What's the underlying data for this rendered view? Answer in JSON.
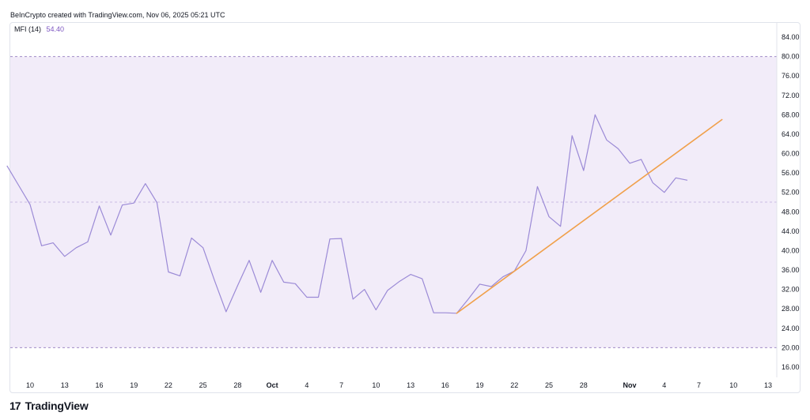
{
  "caption": "BeInCrypto created with TradingView.com, Nov 06, 2025 05:21 UTC",
  "indicator": {
    "name": "MFI (14)",
    "value": "54.40"
  },
  "brand": {
    "mark": "17",
    "name": "TradingView"
  },
  "colors": {
    "line": "#9b8ad6",
    "trend": "#f0a04b",
    "band_fill": "#f2ecf9",
    "band_border": "#a08cc8"
  },
  "chart_data": {
    "type": "line",
    "ylim": [
      12,
      88
    ],
    "y_ticks": [
      "84.00",
      "80.00",
      "76.00",
      "72.00",
      "68.00",
      "64.00",
      "60.00",
      "56.00",
      "52.00",
      "48.00",
      "44.00",
      "40.00",
      "36.00",
      "32.00",
      "28.00",
      "24.00",
      "20.00",
      "16.00"
    ],
    "y_tick_values": [
      84,
      80,
      76,
      72,
      68,
      64,
      60,
      56,
      52,
      48,
      44,
      40,
      36,
      32,
      28,
      24,
      20,
      16
    ],
    "x_tick_labels": [
      "10",
      "13",
      "16",
      "19",
      "22",
      "25",
      "28",
      "Oct",
      "4",
      "7",
      "10",
      "13",
      "16",
      "19",
      "22",
      "25",
      "28",
      "Nov",
      "4",
      "7",
      "10",
      "13"
    ],
    "x_tick_dates": [
      "2025-09-10",
      "2025-09-13",
      "2025-09-16",
      "2025-09-19",
      "2025-09-22",
      "2025-09-25",
      "2025-09-28",
      "2025-10-01",
      "2025-10-04",
      "2025-10-07",
      "2025-10-10",
      "2025-10-13",
      "2025-10-16",
      "2025-10-19",
      "2025-10-22",
      "2025-10-25",
      "2025-10-28",
      "2025-11-01",
      "2025-11-04",
      "2025-11-07",
      "2025-11-10",
      "2025-11-13"
    ],
    "band": {
      "upper": 80,
      "lower": 20,
      "middle": 50
    },
    "series": [
      {
        "values": [
          [
            "2025-09-08",
            57.5
          ],
          [
            "2025-09-09",
            53.5
          ],
          [
            "2025-09-10",
            49.5
          ],
          [
            "2025-09-11",
            41.0
          ],
          [
            "2025-09-12",
            41.6
          ],
          [
            "2025-09-13",
            38.8
          ],
          [
            "2025-09-14",
            40.6
          ],
          [
            "2025-09-15",
            41.8
          ],
          [
            "2025-09-16",
            49.2
          ],
          [
            "2025-09-17",
            43.2
          ],
          [
            "2025-09-18",
            49.4
          ],
          [
            "2025-09-19",
            49.8
          ],
          [
            "2025-09-20",
            53.8
          ],
          [
            "2025-09-21",
            49.9
          ],
          [
            "2025-09-22",
            35.6
          ],
          [
            "2025-09-23",
            34.8
          ],
          [
            "2025-09-24",
            42.6
          ],
          [
            "2025-09-25",
            40.6
          ],
          [
            "2025-09-26",
            33.8
          ],
          [
            "2025-09-27",
            27.4
          ],
          [
            "2025-09-28",
            32.8
          ],
          [
            "2025-09-29",
            38.0
          ],
          [
            "2025-09-30",
            31.4
          ],
          [
            "2025-10-01",
            38.0
          ],
          [
            "2025-10-02",
            33.5
          ],
          [
            "2025-10-03",
            33.2
          ],
          [
            "2025-10-04",
            30.4
          ],
          [
            "2025-10-05",
            30.4
          ],
          [
            "2025-10-06",
            42.4
          ],
          [
            "2025-10-07",
            42.5
          ],
          [
            "2025-10-08",
            30.0
          ],
          [
            "2025-10-09",
            32.0
          ],
          [
            "2025-10-10",
            27.8
          ],
          [
            "2025-10-11",
            31.8
          ],
          [
            "2025-10-12",
            33.6
          ],
          [
            "2025-10-13",
            35.1
          ],
          [
            "2025-10-14",
            34.2
          ],
          [
            "2025-10-15",
            27.2
          ],
          [
            "2025-10-16",
            27.2
          ],
          [
            "2025-10-17",
            27.1
          ],
          [
            "2025-10-18",
            30.0
          ],
          [
            "2025-10-19",
            33.1
          ],
          [
            "2025-10-20",
            32.6
          ],
          [
            "2025-10-21",
            34.6
          ],
          [
            "2025-10-22",
            35.8
          ],
          [
            "2025-10-23",
            40.0
          ],
          [
            "2025-10-24",
            53.2
          ],
          [
            "2025-10-25",
            47.0
          ],
          [
            "2025-10-26",
            45.0
          ],
          [
            "2025-10-27",
            63.7
          ],
          [
            "2025-10-28",
            56.5
          ],
          [
            "2025-10-29",
            68.0
          ],
          [
            "2025-10-30",
            62.8
          ],
          [
            "2025-10-31",
            61.0
          ],
          [
            "2025-11-01",
            58.0
          ],
          [
            "2025-11-02",
            58.8
          ],
          [
            "2025-11-03",
            54.0
          ],
          [
            "2025-11-04",
            52.0
          ],
          [
            "2025-11-05",
            55.0
          ],
          [
            "2025-11-06",
            54.5
          ]
        ]
      }
    ],
    "trendline": {
      "start": [
        "2025-10-17",
        27.1
      ],
      "end": [
        "2025-11-09",
        67.0
      ]
    }
  }
}
